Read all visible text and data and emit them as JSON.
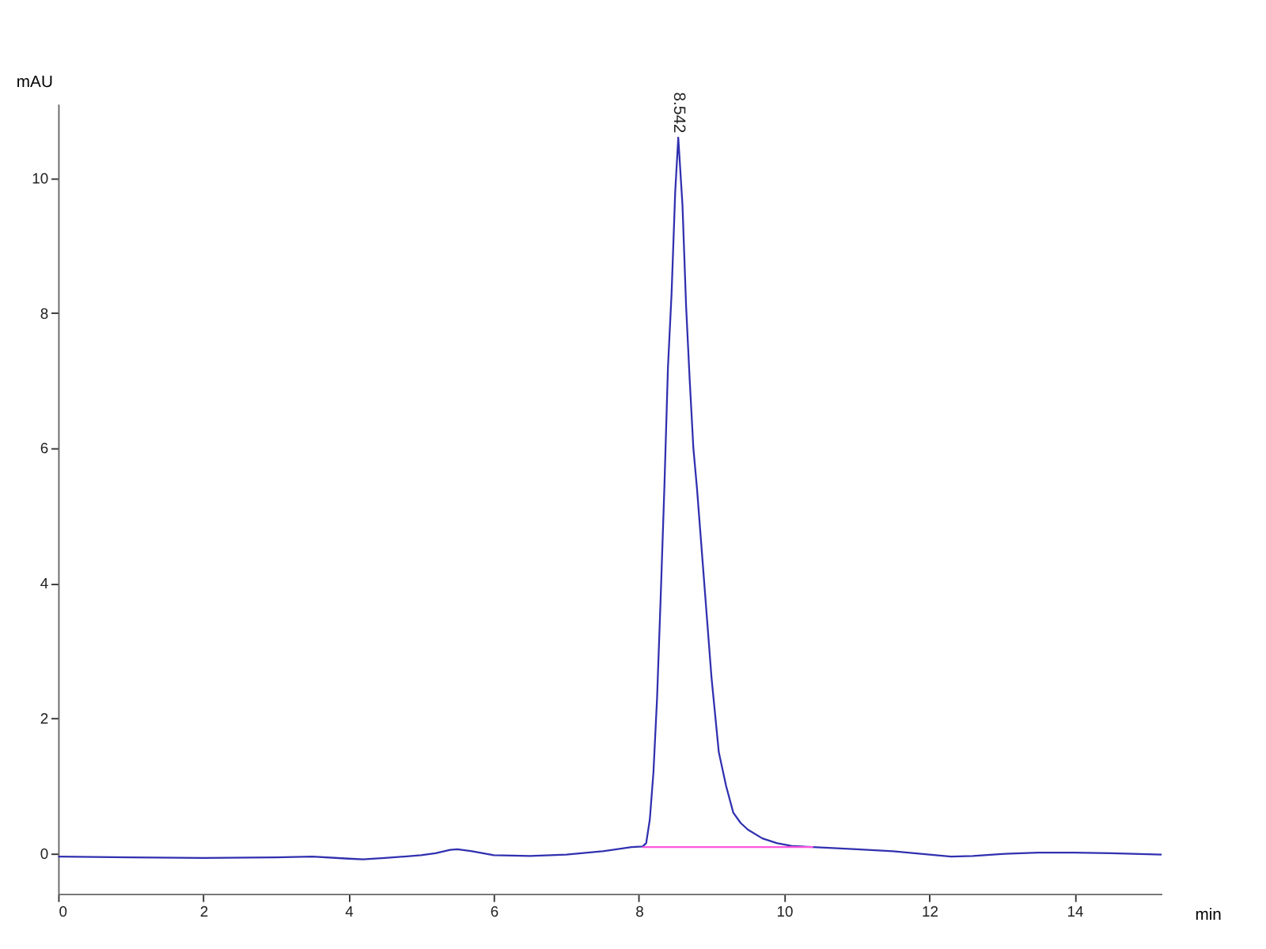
{
  "chart_data": {
    "type": "line",
    "xlabel": "min",
    "ylabel": "mAU",
    "xlim": [
      0,
      15.2
    ],
    "xticks": [
      0,
      2,
      4,
      6,
      8,
      10,
      12,
      14
    ],
    "ylim": [
      -0.6,
      11.1
    ],
    "yticks": [
      0,
      2,
      4,
      6,
      8,
      10
    ],
    "grid": false,
    "marker": "none",
    "line_style": "solid",
    "series": [
      {
        "color": "#3030b0",
        "x": [
          0,
          1,
          2,
          3,
          3.5,
          4,
          4.2,
          4.5,
          5,
          5.2,
          5.4,
          5.5,
          5.7,
          6,
          6.5,
          7,
          7.5,
          7.9,
          8.05,
          8.1,
          8.15,
          8.2,
          8.25,
          8.3,
          8.35,
          8.4,
          8.45,
          8.5,
          8.542,
          8.6,
          8.65,
          8.7,
          8.75,
          8.8,
          8.85,
          8.9,
          8.95,
          9.0,
          9.1,
          9.2,
          9.3,
          9.4,
          9.5,
          9.7,
          9.9,
          10.1,
          10.4,
          11,
          11.5,
          12,
          12.3,
          12.6,
          13,
          13.5,
          14,
          14.5,
          15.2
        ],
        "values": [
          -0.05,
          -0.06,
          -0.07,
          -0.06,
          -0.05,
          -0.08,
          -0.09,
          -0.07,
          -0.03,
          0.0,
          0.05,
          0.06,
          0.03,
          -0.03,
          -0.04,
          -0.02,
          0.03,
          0.09,
          0.1,
          0.15,
          0.5,
          1.2,
          2.3,
          3.8,
          5.4,
          7.2,
          8.3,
          9.8,
          10.6,
          9.6,
          8.1,
          7.0,
          6.0,
          5.4,
          4.7,
          4.0,
          3.3,
          2.6,
          1.5,
          1.0,
          0.6,
          0.45,
          0.35,
          0.22,
          0.15,
          0.11,
          0.09,
          0.06,
          0.03,
          -0.02,
          -0.05,
          -0.04,
          -0.01,
          0.01,
          0.01,
          0.0,
          -0.02
        ]
      },
      {
        "color": "#ff55dd",
        "x": [
          8.05,
          10.4
        ],
        "values": [
          0.09,
          0.09
        ]
      }
    ],
    "annotations": [
      {
        "text": "8.542",
        "x": 8.542,
        "y": 10.6
      }
    ]
  }
}
